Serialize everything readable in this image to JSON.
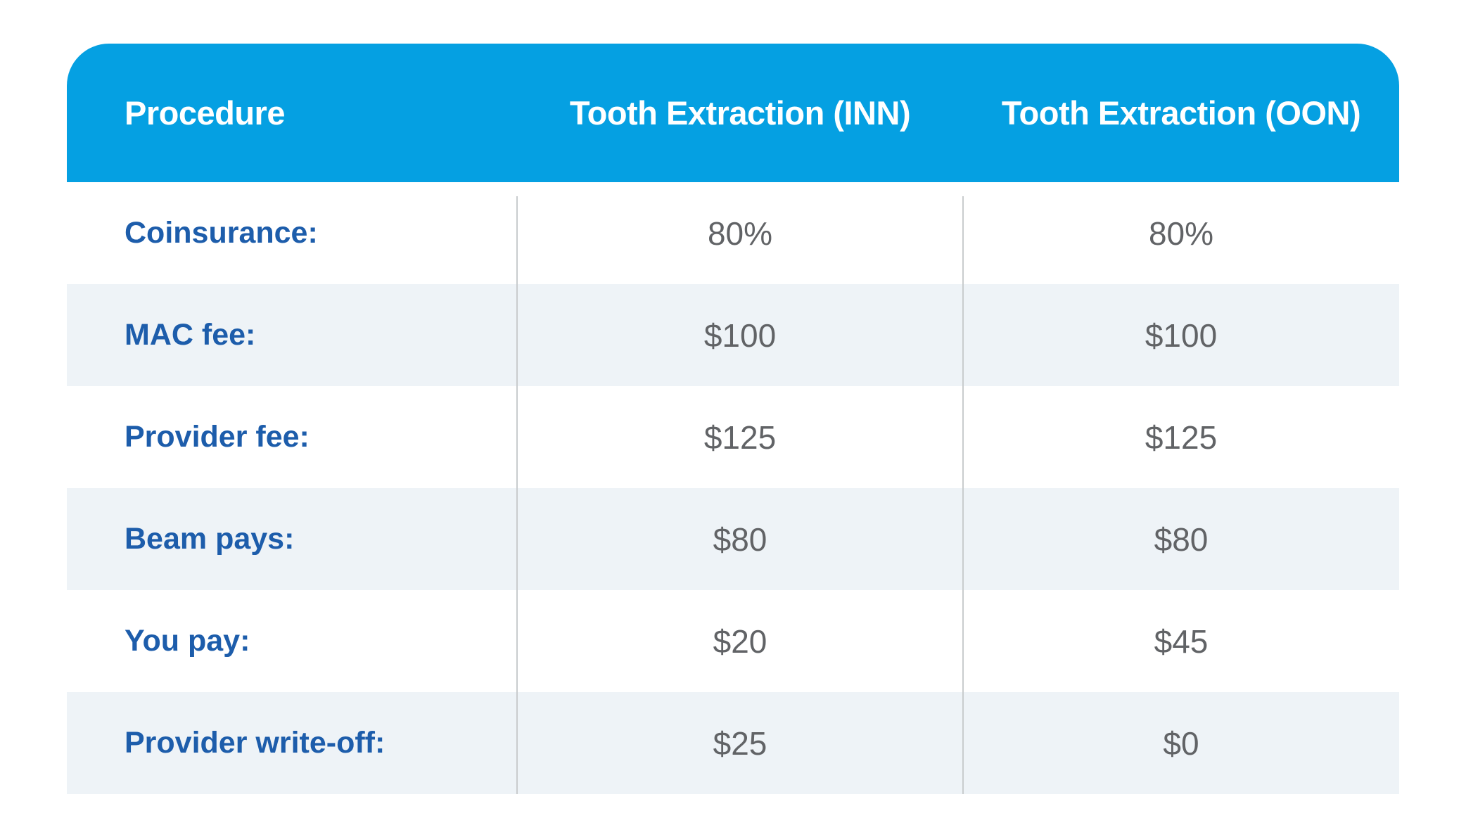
{
  "chart_data": {
    "type": "table",
    "title": "",
    "columns": [
      "Procedure",
      "Tooth Extraction (INN)",
      "Tooth Extraction (OON)"
    ],
    "rows": [
      [
        "Coinsurance:",
        "80%",
        "80%"
      ],
      [
        "MAC fee:",
        "$100",
        "$100"
      ],
      [
        "Provider fee:",
        "$125",
        "$125"
      ],
      [
        "Beam pays:",
        "$80",
        "$80"
      ],
      [
        "You pay:",
        "$20",
        "$45"
      ],
      [
        "Provider write-off:",
        "$25",
        "$0"
      ]
    ],
    "layout_hints": {
      "header_style": "solid blue bar, rounded top corners",
      "zebra_striping": true,
      "column_dividers": true,
      "label_alignment": "left",
      "value_alignment": "center"
    }
  },
  "table": {
    "header": {
      "procedure": "Procedure",
      "inn": "Tooth Extraction (INN)",
      "oon": "Tooth Extraction (OON)"
    },
    "rows": [
      {
        "label": "Coinsurance:",
        "inn": "80%",
        "oon": "80%"
      },
      {
        "label": "MAC fee:",
        "inn": "$100",
        "oon": "$100"
      },
      {
        "label": "Provider fee:",
        "inn": "$125",
        "oon": "$125"
      },
      {
        "label": "Beam pays:",
        "inn": "$80",
        "oon": "$80"
      },
      {
        "label": "You pay:",
        "inn": "$20",
        "oon": "$45"
      },
      {
        "label": "Provider write-off:",
        "inn": "$25",
        "oon": "$0"
      }
    ]
  },
  "colors": {
    "header_bg": "#05a0e2",
    "label_blue": "#1d5dab",
    "value_gray": "#616366",
    "row_alt_bg": "#eef3f7",
    "divider": "#c9ccce"
  }
}
